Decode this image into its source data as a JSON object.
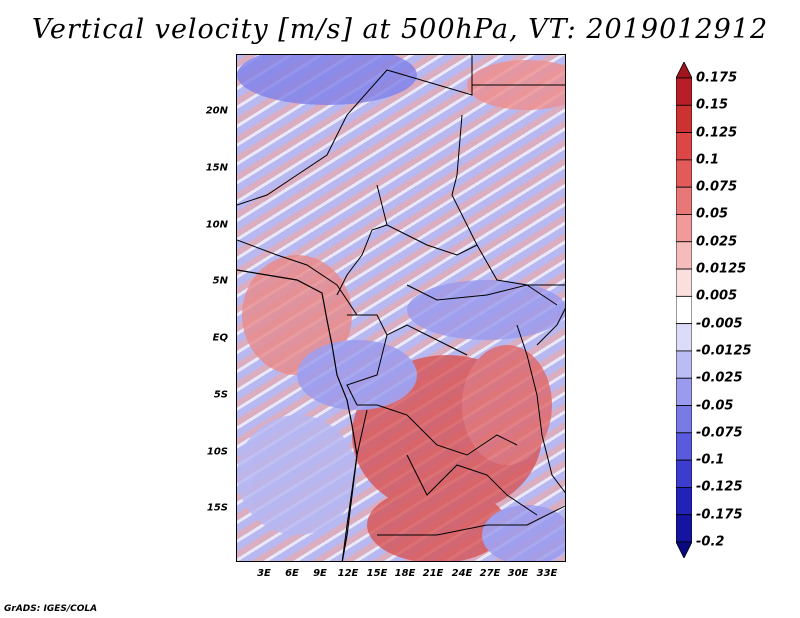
{
  "title": "Vertical velocity [m/s] at 500hPa, VT: 2019012912",
  "map": {
    "variable": "Vertical velocity",
    "units": "m/s",
    "level": "500hPa",
    "valid_time": "2019012912",
    "lat_labels": [
      "20N",
      "15N",
      "10N",
      "5N",
      "EQ",
      "5S",
      "10S",
      "15S"
    ],
    "lon_labels": [
      "3E",
      "6E",
      "9E",
      "12E",
      "15E",
      "18E",
      "21E",
      "24E",
      "27E",
      "30E",
      "33E"
    ]
  },
  "colorbar": {
    "levels": [
      "0.175",
      "0.15",
      "0.125",
      "0.1",
      "0.075",
      "0.05",
      "0.025",
      "0.0125",
      "0.005",
      "-0.005",
      "-0.0125",
      "-0.025",
      "-0.05",
      "-0.075",
      "-0.1",
      "-0.125",
      "-0.175",
      "-0.2"
    ],
    "colors": [
      "#a0141e",
      "#b81e28",
      "#cc3232",
      "#dc4646",
      "#e25a5a",
      "#e87878",
      "#f09a9a",
      "#f6bcbc",
      "#fbdede",
      "#ffffff",
      "#dcdcfa",
      "#bcbcf4",
      "#9a9aee",
      "#7a7ae6",
      "#5a5ade",
      "#3c3cce",
      "#2222b8",
      "#1414a0",
      "#0a0a80"
    ]
  },
  "credit": "GrADS: IGES/COLA"
}
